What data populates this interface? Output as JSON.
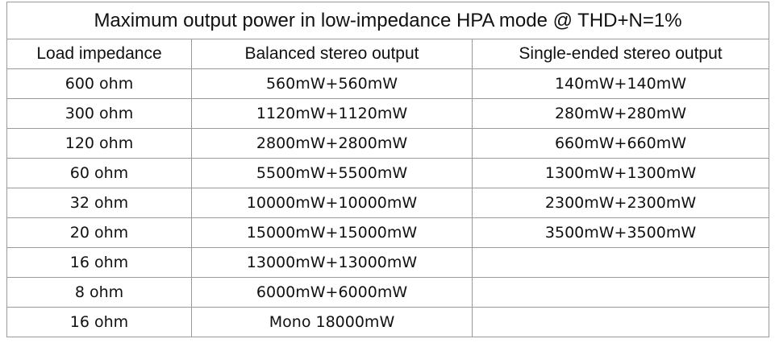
{
  "table": {
    "title": "Maximum output power in low-impedance HPA mode @ THD+N=1%",
    "header": [
      "Load impedance",
      "Balanced stereo output",
      "Single-ended stereo output"
    ],
    "rows": [
      [
        "600 ohm",
        "560mW+560mW",
        "140mW+140mW"
      ],
      [
        "300 ohm",
        "1120mW+1120mW",
        "280mW+280mW"
      ],
      [
        "120 ohm",
        "2800mW+2800mW",
        "660mW+660mW"
      ],
      [
        "60 ohm",
        "5500mW+5500mW",
        "1300mW+1300mW"
      ],
      [
        "32 ohm",
        "10000mW+10000mW",
        "2300mW+2300mW"
      ],
      [
        "20 ohm",
        "15000mW+15000mW",
        "3500mW+3500mW"
      ],
      [
        "16 ohm",
        "13000mW+13000mW"
      ],
      [
        "8 ohm",
        "6000mW+6000mW"
      ],
      [
        "16 ohm",
        "Mono 18000mW"
      ]
    ]
  }
}
